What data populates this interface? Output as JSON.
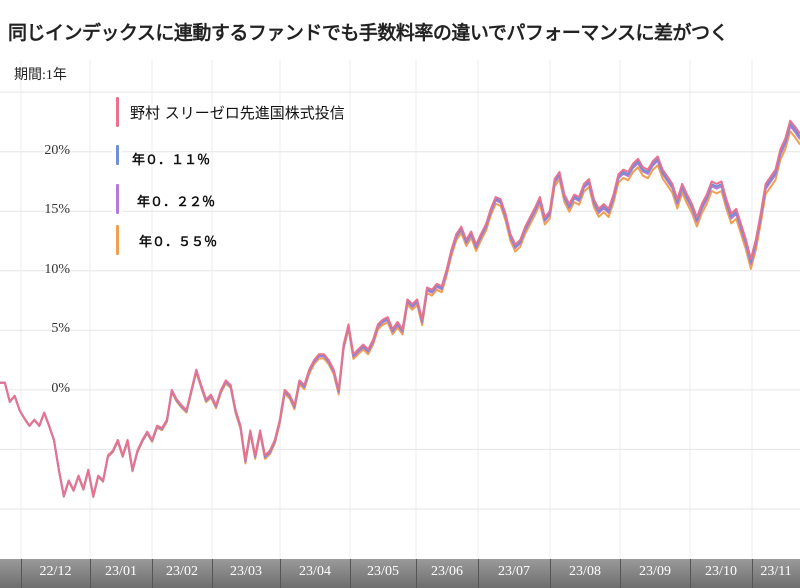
{
  "title": "同じインデックスに連動するファンドでも手数料率の違いでパフォーマンスに差がつく",
  "period_label": "期間:1年",
  "legend": [
    {
      "label": "野村 スリーゼロ先進国株式投信",
      "color": "#e8728f"
    },
    {
      "label": "年０．１１％",
      "color": "#6f8fd8"
    },
    {
      "label": "年０．２２％",
      "color": "#b47ad8"
    },
    {
      "label": "年０．５５％",
      "color": "#f0a050"
    }
  ],
  "chart_data": {
    "type": "line",
    "title": "",
    "xlabel": "",
    "ylabel": "",
    "ylim": [
      -14.2,
      27.7
    ],
    "yticks": [
      "0%",
      "5%",
      "10%",
      "15%",
      "20%"
    ],
    "ytick_values": [
      0,
      5,
      10,
      15,
      20
    ],
    "xticks": [
      "22/12",
      "23/01",
      "23/02",
      "23/03",
      "23/04",
      "23/05",
      "23/06",
      "23/07",
      "23/08",
      "23/09",
      "23/10",
      "23/11"
    ],
    "grid": true,
    "legend_position": "top-left",
    "series": [
      {
        "name": "野村 スリーゼロ先進国株式投信",
        "color": "#e8728f",
        "values": [
          0.6,
          0.6,
          -1.0,
          -0.5,
          -1.7,
          -2.4,
          -3.0,
          -2.5,
          -3.0,
          -1.9,
          -3.0,
          -4.2,
          -6.7,
          -8.9,
          -7.6,
          -8.4,
          -7.2,
          -8.3,
          -6.7,
          -8.9,
          -7.2,
          -7.6,
          -5.5,
          -5.1,
          -4.2,
          -5.5,
          -4.2,
          -6.7,
          -5.1,
          -4.2,
          -3.5,
          -4.2,
          -3.0,
          -3.2,
          -2.5,
          0,
          -0.8,
          -1.3,
          -1.7,
          0,
          1.7,
          0.4,
          -0.8,
          -0.4,
          -1.3,
          0,
          0.8,
          0.4,
          -1.7,
          -3.0,
          -5.9,
          -3.4,
          -5.5,
          -3.4,
          -5.5,
          -5.1,
          -4.2,
          -2.5,
          0,
          -0.4,
          -1.3,
          0.8,
          0.4,
          1.7,
          2.5,
          3.0,
          3.0,
          2.5,
          1.7,
          0,
          3.8,
          5.5,
          3.0,
          3.4,
          3.8,
          3.4,
          4.2,
          5.5,
          5.9,
          6.1,
          5.1,
          5.7,
          5.1,
          7.6,
          7.2,
          7.6,
          5.9,
          8.6,
          8.4,
          8.9,
          8.7,
          10.1,
          11.8,
          13.1,
          13.7,
          12.6,
          13.3,
          12.2,
          13.1,
          13.9,
          15.2,
          16.2,
          16.0,
          14.8,
          13.1,
          12.2,
          12.6,
          13.7,
          14.5,
          15.3,
          16.2,
          14.5,
          15.0,
          17.7,
          18.3,
          16.4,
          15.6,
          16.4,
          16.2,
          17.3,
          17.7,
          16.0,
          15.2,
          15.6,
          15.2,
          16.4,
          18.1,
          18.5,
          18.3,
          19.0,
          19.4,
          18.7,
          18.5,
          19.2,
          19.6,
          18.5,
          17.9,
          17.3,
          16.0,
          17.3,
          16.4,
          15.6,
          14.5,
          15.6,
          16.4,
          17.5,
          17.3,
          17.5,
          16.0,
          14.8,
          15.2,
          13.9,
          12.6,
          11.0,
          12.6,
          14.8,
          17.3,
          17.9,
          18.5,
          20.2,
          21.1,
          22.6,
          22.1,
          21.5
        ]
      },
      {
        "name": "年０．１１％",
        "color": "#6f8fd8"
      },
      {
        "name": "年０．２２％",
        "color": "#b47ad8"
      },
      {
        "name": "年０．５５％",
        "color": "#f0a050"
      }
    ]
  }
}
